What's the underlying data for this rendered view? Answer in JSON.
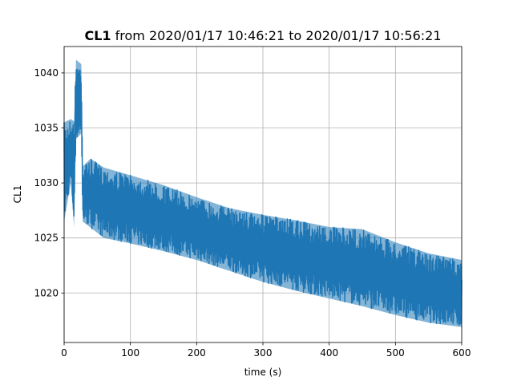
{
  "chart_data": {
    "type": "line",
    "title_bold": "CL1",
    "title_rest": " from 2020/01/17 10:46:21 to 2020/01/17 10:56:21",
    "xlabel": "time (s)",
    "ylabel": "CL1",
    "xlim": [
      0,
      600
    ],
    "ylim": [
      1015.5,
      1042.4
    ],
    "xticks": [
      0,
      100,
      200,
      300,
      400,
      500,
      600
    ],
    "yticks": [
      1020,
      1025,
      1030,
      1035,
      1040
    ],
    "grid": true,
    "color": "#1f77b4",
    "envelope": {
      "upper": [
        [
          0,
          1035.5
        ],
        [
          10,
          1035.8
        ],
        [
          15,
          1035.6
        ],
        [
          18,
          1041.2
        ],
        [
          22,
          1041.0
        ],
        [
          26,
          1040.8
        ],
        [
          28,
          1031.5
        ],
        [
          40,
          1032.2
        ],
        [
          60,
          1031.4
        ],
        [
          100,
          1030.7
        ],
        [
          150,
          1029.8
        ],
        [
          200,
          1028.7
        ],
        [
          250,
          1027.7
        ],
        [
          300,
          1027.1
        ],
        [
          350,
          1026.6
        ],
        [
          400,
          1026.0
        ],
        [
          450,
          1025.8
        ],
        [
          500,
          1024.6
        ],
        [
          550,
          1023.6
        ],
        [
          600,
          1023.0
        ]
      ],
      "lower": [
        [
          0,
          1026.5
        ],
        [
          10,
          1030.0
        ],
        [
          15,
          1026.0
        ],
        [
          18,
          1034.0
        ],
        [
          26,
          1034.5
        ],
        [
          28,
          1026.5
        ],
        [
          60,
          1025.0
        ],
        [
          100,
          1024.5
        ],
        [
          150,
          1023.8
        ],
        [
          200,
          1023.0
        ],
        [
          250,
          1022.0
        ],
        [
          300,
          1021.0
        ],
        [
          350,
          1020.2
        ],
        [
          400,
          1019.5
        ],
        [
          450,
          1018.8
        ],
        [
          500,
          1018.0
        ],
        [
          550,
          1017.3
        ],
        [
          600,
          1016.9
        ]
      ]
    }
  }
}
